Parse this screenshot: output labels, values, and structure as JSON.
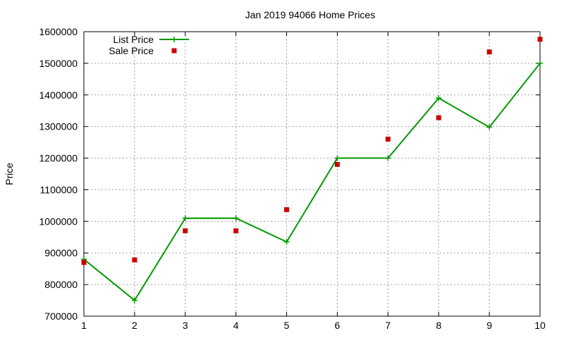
{
  "chart_data": {
    "type": "line",
    "title": "Jan 2019 94066 Home Prices",
    "ylabel": "Price",
    "xlabel": "",
    "x": [
      1,
      2,
      3,
      4,
      5,
      6,
      7,
      8,
      9,
      10
    ],
    "xlim": [
      1,
      10
    ],
    "ylim": [
      700000,
      1600000
    ],
    "x_ticks": [
      1,
      2,
      3,
      4,
      5,
      6,
      7,
      8,
      9,
      10
    ],
    "y_ticks": [
      700000,
      800000,
      900000,
      1000000,
      1100000,
      1200000,
      1300000,
      1400000,
      1500000,
      1600000
    ],
    "grid": true,
    "legend_position": "top-left",
    "series": [
      {
        "name": "List Price",
        "style": "line+cross",
        "color": "#009900",
        "values": [
          880000,
          750000,
          1010000,
          1010000,
          935000,
          1200000,
          1200000,
          1390000,
          1298000,
          1500000
        ]
      },
      {
        "name": "Sale Price",
        "style": "square-points",
        "color": "#cc0000",
        "values": [
          870000,
          878000,
          970000,
          970000,
          1037000,
          1180000,
          1260000,
          1328000,
          1536000,
          1576000
        ]
      }
    ]
  }
}
